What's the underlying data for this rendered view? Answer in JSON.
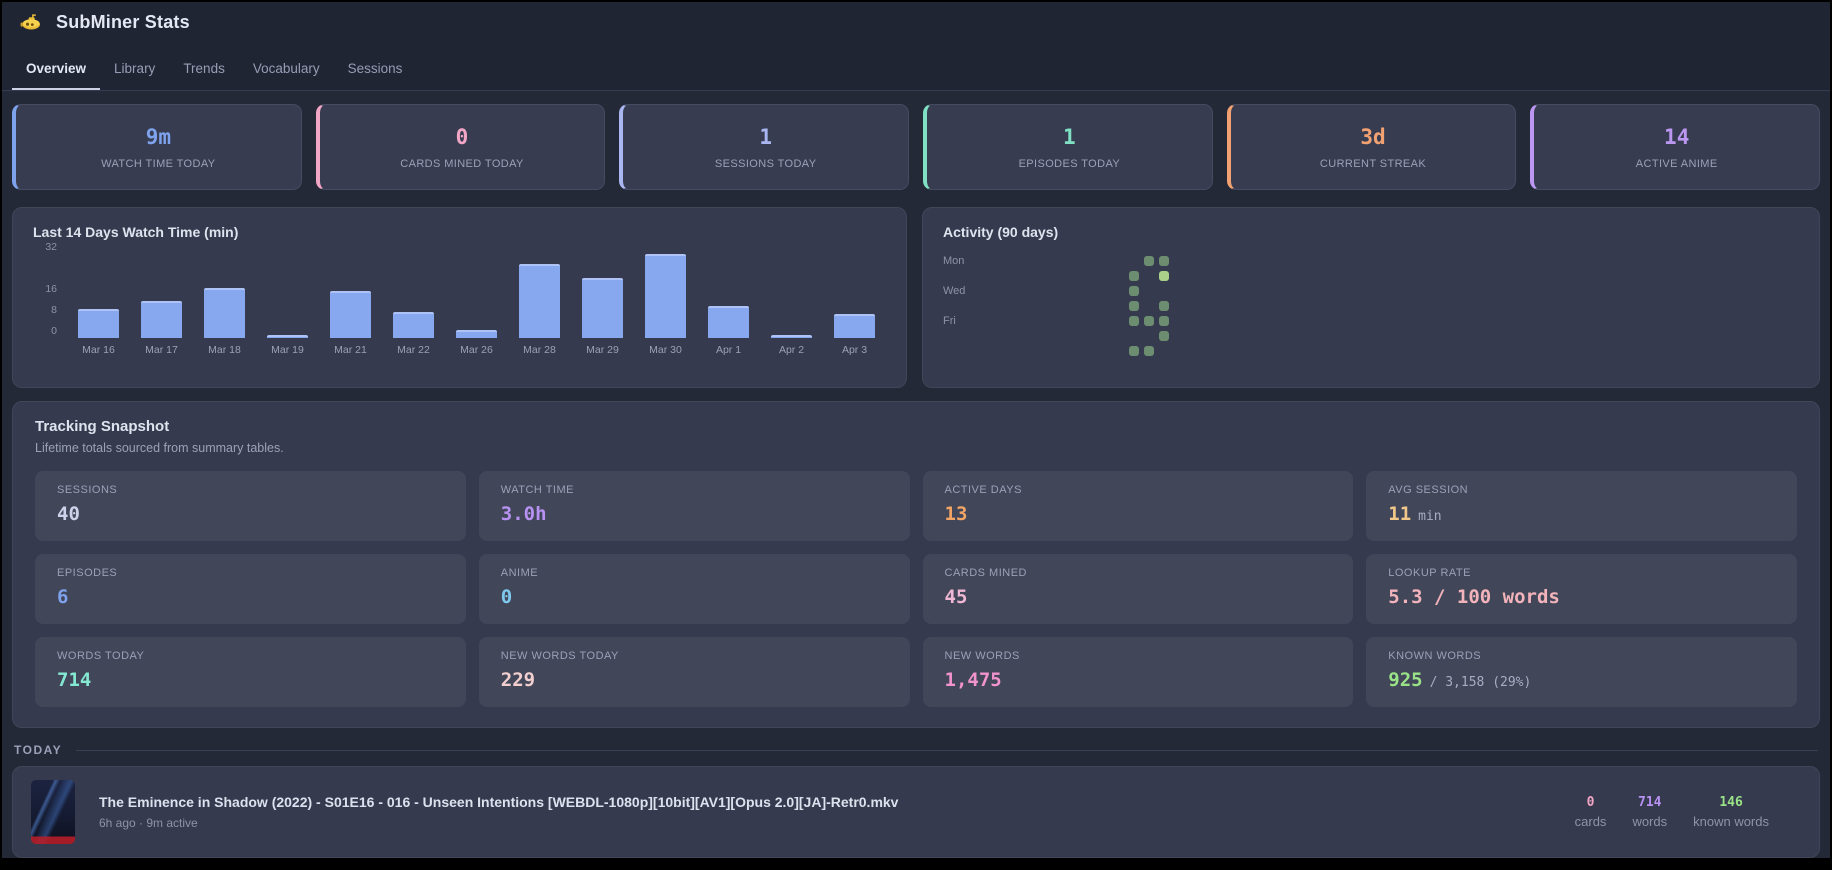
{
  "header": {
    "title": "SubMiner Stats",
    "icon": "yellow-submarine"
  },
  "tabs": [
    {
      "label": "Overview",
      "active": true
    },
    {
      "label": "Library",
      "active": false
    },
    {
      "label": "Trends",
      "active": false
    },
    {
      "label": "Vocabulary",
      "active": false
    },
    {
      "label": "Sessions",
      "active": false
    }
  ],
  "stat_cards": [
    {
      "value": "9m",
      "label": "WATCH TIME TODAY",
      "color": "#7ea2ec"
    },
    {
      "value": "0",
      "label": "CARDS MINED TODAY",
      "color": "#f2a6c6"
    },
    {
      "value": "1",
      "label": "SESSIONS TODAY",
      "color": "#aab6f0"
    },
    {
      "value": "1",
      "label": "EPISODES TODAY",
      "color": "#7fe0c3"
    },
    {
      "value": "3d",
      "label": "CURRENT STREAK",
      "color": "#f2a272"
    },
    {
      "value": "14",
      "label": "ACTIVE ANIME",
      "color": "#bb97f2"
    }
  ],
  "chart_data": {
    "type": "bar",
    "title": "Last 14 Days Watch Time (min)",
    "categories": [
      "Mar 16",
      "Mar 17",
      "Mar 18",
      "Mar 19",
      "Mar 21",
      "Mar 22",
      "Mar 26",
      "Mar 28",
      "Mar 29",
      "Mar 30",
      "Apr 1",
      "Apr 2",
      "Apr 3"
    ],
    "values": [
      11,
      14,
      19,
      1,
      18,
      10,
      3,
      28,
      23,
      32,
      12,
      1,
      9
    ],
    "xlabel": "",
    "ylabel": "",
    "yticks": [
      0,
      8,
      16,
      32
    ],
    "ylim": [
      0,
      32
    ],
    "grid": false,
    "bar_color": "#87a7ee"
  },
  "activity": {
    "title": "Activity (90 days)",
    "day_labels": [
      "Mon",
      "Wed",
      "Fri"
    ],
    "day_label_rows": [
      0,
      2,
      4
    ],
    "cols": 13,
    "rows": 7,
    "cell_color": "#6d8d70",
    "highlight_color": "#a9cf8b",
    "active_cells": [
      {
        "r": 0,
        "c": 11
      },
      {
        "r": 0,
        "c": 12
      },
      {
        "r": 1,
        "c": 10
      },
      {
        "r": 1,
        "c": 12,
        "hi": true
      },
      {
        "r": 2,
        "c": 10
      },
      {
        "r": 3,
        "c": 10
      },
      {
        "r": 3,
        "c": 12
      },
      {
        "r": 4,
        "c": 10
      },
      {
        "r": 4,
        "c": 11
      },
      {
        "r": 4,
        "c": 12
      },
      {
        "r": 5,
        "c": 12
      },
      {
        "r": 6,
        "c": 10
      },
      {
        "r": 6,
        "c": 11
      }
    ]
  },
  "snapshot": {
    "title": "Tracking Snapshot",
    "subtitle": "Lifetime totals sourced from summary tables.",
    "tiles": [
      {
        "label": "SESSIONS",
        "value": "40",
        "suffix": "",
        "color": "#ccd2ea"
      },
      {
        "label": "WATCH TIME",
        "value": "3.0h",
        "suffix": "",
        "color": "#b892f2"
      },
      {
        "label": "ACTIVE DAYS",
        "value": "13",
        "suffix": "",
        "color": "#f2a465"
      },
      {
        "label": "AVG SESSION",
        "value": "11",
        "suffix": "min",
        "color": "#f2c88a"
      },
      {
        "label": "EPISODES",
        "value": "6",
        "suffix": "",
        "color": "#7ea2ec"
      },
      {
        "label": "ANIME",
        "value": "0",
        "suffix": "",
        "color": "#7fc9ee"
      },
      {
        "label": "CARDS MINED",
        "value": "45",
        "suffix": "",
        "color": "#f0b7d4"
      },
      {
        "label": "LOOKUP RATE",
        "value": "5.3 / 100 words",
        "suffix": "",
        "color": "#f2b3ba"
      },
      {
        "label": "WORDS TODAY",
        "value": "714",
        "suffix": "",
        "color": "#85e8d2"
      },
      {
        "label": "NEW WORDS TODAY",
        "value": "229",
        "suffix": "",
        "color": "#f2cfcf"
      },
      {
        "label": "NEW WORDS",
        "value": "1,475",
        "suffix": "",
        "color": "#f193cd"
      },
      {
        "label": "KNOWN WORDS",
        "value": "925",
        "suffix": "/ 3,158 (29%)",
        "color": "#9ae287"
      }
    ]
  },
  "today": {
    "label": "TODAY",
    "item": {
      "title": "The Eminence in Shadow (2022) - S01E16 - 016 - Unseen Intentions [WEBDL-1080p][10bit][AV1][Opus 2.0][JA]-Retr0.mkv",
      "meta": "6h ago · 9m active",
      "stats": [
        {
          "value": "0",
          "label": "cards",
          "color": "#f2a6c6"
        },
        {
          "value": "714",
          "label": "words",
          "color": "#b892f2"
        },
        {
          "value": "146",
          "label": "known words",
          "color": "#9ae287"
        }
      ]
    }
  }
}
